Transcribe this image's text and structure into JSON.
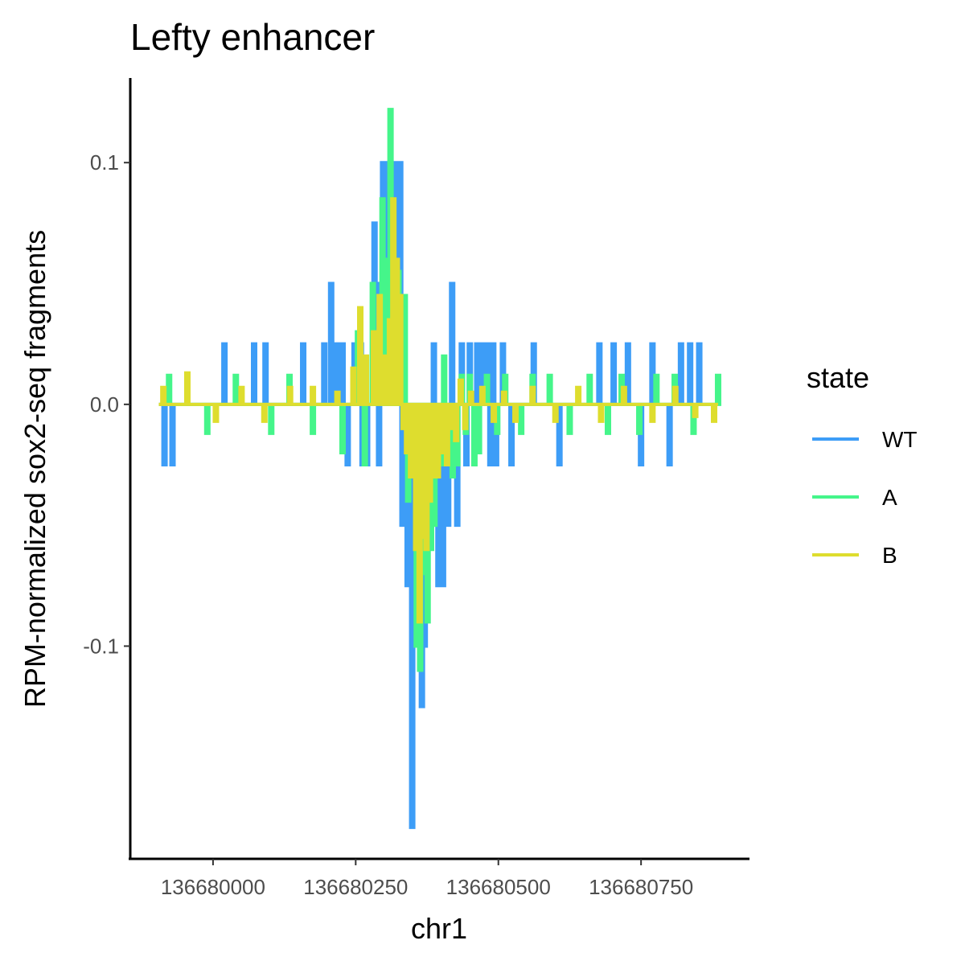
{
  "chart_data": {
    "type": "line",
    "title": "Lefty enhancer",
    "xlabel": "chr1",
    "ylabel": "RPM-normalized sox2-seq fragments",
    "xlim": [
      136679855,
      136680940
    ],
    "ylim": [
      -0.188,
      0.135
    ],
    "x_ticks": [
      136680000,
      136680250,
      136680500,
      136680750
    ],
    "x_tick_labels": [
      "136680000",
      "136680250",
      "136680500",
      "136680750"
    ],
    "y_ticks": [
      -0.1,
      0.0,
      0.1
    ],
    "y_tick_labels": [
      "-0.1",
      "0.0",
      "0.1"
    ],
    "grid": false,
    "legend": {
      "title": "state",
      "position": "right"
    },
    "series": [
      {
        "name": "WT",
        "color": "#3d9df7",
        "x": [
          136679915,
          136679929,
          136679953,
          136680020,
          136680072,
          136680080,
          136680092,
          136680158,
          136680188,
          136680195,
          136680207,
          136680218,
          136680227,
          136680236,
          136680248,
          136680259,
          136680262,
          136680270,
          136680283,
          136680288,
          136680291,
          136680298,
          136680302,
          136680310,
          136680316,
          136680320,
          136680328,
          136680332,
          136680341,
          136680349,
          136680358,
          136680366,
          136680371,
          136680374,
          136680383,
          136680387,
          136680395,
          136680403,
          136680412,
          136680419,
          136680428,
          136680436,
          136680444,
          136680450,
          136680463,
          136680467,
          136680473,
          136680480,
          136680486,
          136680491,
          136680496,
          136680502,
          136680508,
          136680523,
          136680562,
          136680607,
          136680677,
          136680702,
          136680727,
          136680750,
          136680770,
          136680800,
          136680820,
          136680836,
          136680852,
          136680858
        ],
        "values": [
          -0.025,
          -0.025,
          0.0,
          0.025,
          0.025,
          0.0,
          0.025,
          0.025,
          0.0,
          0.025,
          0.05,
          0.025,
          0.025,
          -0.025,
          0.025,
          0.025,
          -0.025,
          -0.025,
          0.075,
          0.05,
          -0.025,
          0.1,
          0.1,
          0.075,
          0.1,
          0.1,
          0.1,
          -0.05,
          -0.075,
          -0.175,
          -0.1,
          -0.125,
          -0.1,
          -0.075,
          -0.05,
          0.025,
          -0.075,
          -0.075,
          -0.05,
          0.05,
          -0.05,
          0.025,
          -0.025,
          0.025,
          0.025,
          0.025,
          0.025,
          0.025,
          -0.025,
          0.025,
          -0.025,
          0.0,
          0.025,
          -0.025,
          0.025,
          -0.025,
          0.025,
          0.025,
          0.025,
          -0.025,
          0.025,
          -0.025,
          0.025,
          0.025,
          0.025,
          0.0
        ]
      },
      {
        "name": "A",
        "color": "#45f58a",
        "x": [
          136679923,
          136679990,
          136680040,
          136680102,
          136680134,
          136680175,
          136680227,
          136680254,
          136680266,
          136680280,
          136680297,
          136680304,
          136680311,
          136680318,
          136680325,
          136680336,
          136680342,
          136680350,
          136680357,
          136680363,
          136680370,
          136680376,
          136680382,
          136680388,
          136680394,
          136680399,
          136680405,
          136680412,
          136680420,
          136680428,
          136680436,
          136680443,
          136680450,
          136680458,
          136680466,
          136680480,
          136680498,
          136680512,
          136680540,
          136680560,
          136680590,
          136680625,
          136680660,
          136680692,
          136680716,
          136680747,
          136680777,
          136680809,
          136680842,
          136680885
        ],
        "values": [
          0.012,
          -0.012,
          0.012,
          -0.012,
          0.012,
          -0.012,
          -0.02,
          0.03,
          -0.025,
          0.05,
          0.085,
          0.06,
          0.122,
          0.04,
          0.055,
          0.045,
          -0.04,
          0.0,
          -0.1,
          -0.11,
          -0.07,
          -0.09,
          -0.06,
          -0.05,
          -0.03,
          -0.025,
          0.02,
          -0.02,
          -0.03,
          -0.025,
          0.012,
          -0.012,
          0.012,
          -0.025,
          -0.02,
          0.012,
          -0.012,
          0.012,
          -0.012,
          0.012,
          0.012,
          -0.012,
          0.012,
          -0.012,
          0.012,
          -0.012,
          0.012,
          0.012,
          -0.012,
          0.012
        ]
      },
      {
        "name": "B",
        "color": "#dedd2e",
        "x": [
          136679913,
          136679955,
          136680005,
          136680050,
          136680090,
          136680135,
          136680175,
          136680218,
          136680246,
          136680258,
          136680268,
          136680282,
          136680292,
          136680302,
          136680310,
          136680316,
          136680322,
          136680328,
          136680334,
          136680340,
          136680347,
          136680356,
          136680362,
          136680367,
          136680374,
          136680380,
          136680386,
          136680394,
          136680402,
          136680410,
          136680418,
          136680426,
          136680434,
          136680442,
          136680452,
          136680472,
          136680492,
          136680510,
          136680530,
          136680560,
          136680600,
          136680640,
          136680680,
          136680720,
          136680770,
          136680810,
          136680845,
          136680878
        ],
        "values": [
          0.007,
          0.013,
          -0.007,
          0.007,
          -0.007,
          0.007,
          0.007,
          0.005,
          0.015,
          0.04,
          0.02,
          0.03,
          0.045,
          0.02,
          0.035,
          0.085,
          0.06,
          0.045,
          -0.01,
          -0.02,
          -0.03,
          -0.06,
          -0.09,
          -0.055,
          -0.06,
          -0.04,
          -0.03,
          -0.03,
          -0.02,
          -0.025,
          -0.01,
          -0.015,
          0.01,
          -0.01,
          0.005,
          0.007,
          -0.007,
          0.005,
          -0.007,
          0.007,
          -0.007,
          0.007,
          -0.007,
          0.007,
          -0.007,
          0.007,
          -0.005,
          -0.007
        ]
      }
    ]
  }
}
